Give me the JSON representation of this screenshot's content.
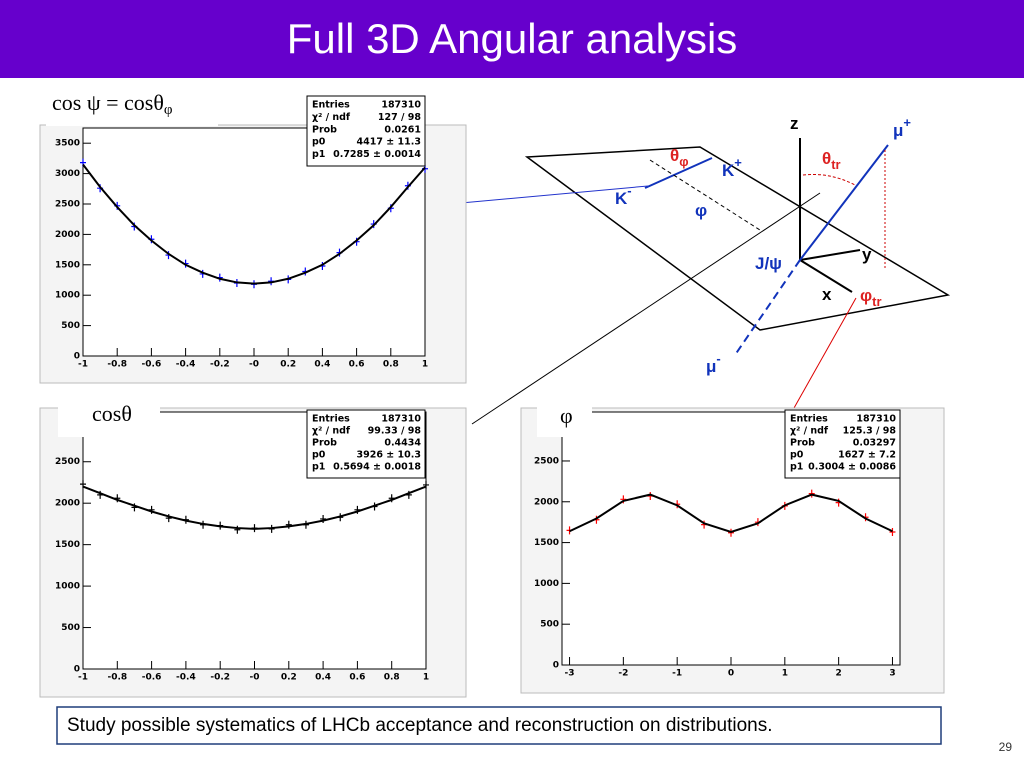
{
  "title": "Full 3D Angular analysis",
  "chart_data": [
    {
      "type": "scatter",
      "title": "cos ψ = cosθ",
      "title_sub": "φ",
      "x": [
        -1,
        -0.9,
        -0.8,
        -0.7,
        -0.6,
        -0.5,
        -0.4,
        -0.3,
        -0.2,
        -0.1,
        0,
        0.1,
        0.2,
        0.3,
        0.4,
        0.5,
        0.6,
        0.7,
        0.8,
        0.9,
        1
      ],
      "xlim": [
        -1,
        1
      ],
      "ylim": [
        0,
        3750
      ],
      "xticks": [
        -1,
        -0.8,
        -0.6,
        -0.4,
        -0.2,
        {
          "value": 0,
          "label": "-0"
        },
        0.2,
        0.4,
        0.6,
        0.8,
        1
      ],
      "yticks": [
        0,
        500,
        1000,
        1500,
        2000,
        2500,
        3000,
        3500
      ],
      "series": [
        {
          "style": "markers",
          "color": "#0000ff",
          "values": [
            3180,
            2760,
            2470,
            2130,
            1920,
            1660,
            1520,
            1350,
            1290,
            1200,
            1180,
            1230,
            1260,
            1390,
            1480,
            1700,
            1880,
            2170,
            2430,
            2800,
            3080
          ]
        },
        {
          "style": "line",
          "color": "#000000",
          "values": [
            3150,
            2780,
            2450,
            2150,
            1900,
            1680,
            1500,
            1370,
            1270,
            1210,
            1190,
            1210,
            1270,
            1370,
            1500,
            1680,
            1900,
            2150,
            2450,
            2780,
            3100
          ]
        }
      ],
      "stats": {
        "labels": [
          "Entries",
          "χ² / ndf",
          "Prob",
          "p0",
          "p1"
        ],
        "values": [
          "187310",
          "127 / 98",
          "0.0261",
          "4417 ± 11.3",
          "0.7285 ± 0.0014"
        ]
      }
    },
    {
      "type": "scatter",
      "title": "cosθ",
      "x": [
        -1,
        -0.9,
        -0.8,
        -0.7,
        -0.6,
        -0.5,
        -0.4,
        -0.3,
        -0.2,
        -0.1,
        0,
        0.1,
        0.2,
        0.3,
        0.4,
        0.5,
        0.6,
        0.7,
        0.8,
        0.9,
        1
      ],
      "xlim": [
        -1,
        1
      ],
      "ylim": [
        0,
        3100
      ],
      "xticks": [
        -1,
        -0.8,
        -0.6,
        -0.4,
        -0.2,
        {
          "value": 0,
          "label": "-0"
        },
        0.2,
        0.4,
        0.6,
        0.8,
        1
      ],
      "yticks": [
        0,
        500,
        1000,
        1500,
        2000,
        2500
      ],
      "series": [
        {
          "style": "markers",
          "color": "#000000",
          "values": [
            2230,
            2100,
            2060,
            1950,
            1920,
            1820,
            1800,
            1740,
            1730,
            1680,
            1700,
            1690,
            1740,
            1740,
            1810,
            1830,
            1920,
            1960,
            2060,
            2100,
            2220
          ]
        },
        {
          "style": "line",
          "color": "#000000",
          "values": [
            2200,
            2120,
            2040,
            1970,
            1900,
            1840,
            1790,
            1750,
            1720,
            1700,
            1690,
            1700,
            1720,
            1750,
            1790,
            1840,
            1900,
            1970,
            2040,
            2120,
            2200
          ]
        }
      ],
      "stats": {
        "labels": [
          "Entries",
          "χ² / ndf",
          "Prob",
          "p0",
          "p1"
        ],
        "values": [
          "187310",
          "99.33 / 98",
          "0.4434",
          "3926 ± 10.3",
          "0.5694 ± 0.0018"
        ]
      }
    },
    {
      "type": "scatter",
      "title": "φ",
      "x": [
        -3,
        -2.5,
        -2,
        -1.5,
        -1,
        -0.5,
        0,
        0.5,
        1,
        1.5,
        2,
        2.5,
        3
      ],
      "xlim": [
        -3.14,
        3.14
      ],
      "ylim": [
        0,
        3100
      ],
      "xticks": [
        -3,
        -2,
        -1,
        0,
        1,
        2,
        3
      ],
      "yticks": [
        0,
        500,
        1000,
        1500,
        2000,
        2500
      ],
      "series": [
        {
          "style": "markers",
          "color": "#ff0000",
          "values": [
            1650,
            1780,
            2030,
            2070,
            1970,
            1720,
            1620,
            1750,
            1950,
            2100,
            1990,
            1810,
            1630
          ]
        },
        {
          "style": "line",
          "color": "#000000",
          "values": [
            1639,
            1795,
            2010,
            2088,
            1956,
            1736,
            1630,
            1736,
            1956,
            2088,
            2010,
            1795,
            1639
          ]
        }
      ],
      "stats": {
        "labels": [
          "Entries",
          "χ² / ndf",
          "Prob",
          "p0",
          "p1"
        ],
        "values": [
          "187310",
          "125.3 / 98",
          "0.03297",
          "1627 ± 7.2",
          "0.3004 ± 0.0086"
        ]
      }
    }
  ],
  "diagram": {
    "labels": [
      {
        "base": "z"
      },
      {
        "base": "μ",
        "sup": "+"
      },
      {
        "base": "θ",
        "sub": "tr"
      },
      {
        "base": "θ",
        "sub": "φ"
      },
      {
        "base": "K",
        "sup": "+"
      },
      {
        "base": "K",
        "sup": "-"
      },
      {
        "base": "φ"
      },
      {
        "base": "J/ψ"
      },
      {
        "base": "y"
      },
      {
        "base": "x"
      },
      {
        "base": "φ",
        "sub": "tr"
      },
      {
        "base": "μ",
        "sup": "-"
      }
    ]
  },
  "footer": "Study possible systematics of LHCb acceptance and reconstruction on distributions.",
  "page_number": "29"
}
